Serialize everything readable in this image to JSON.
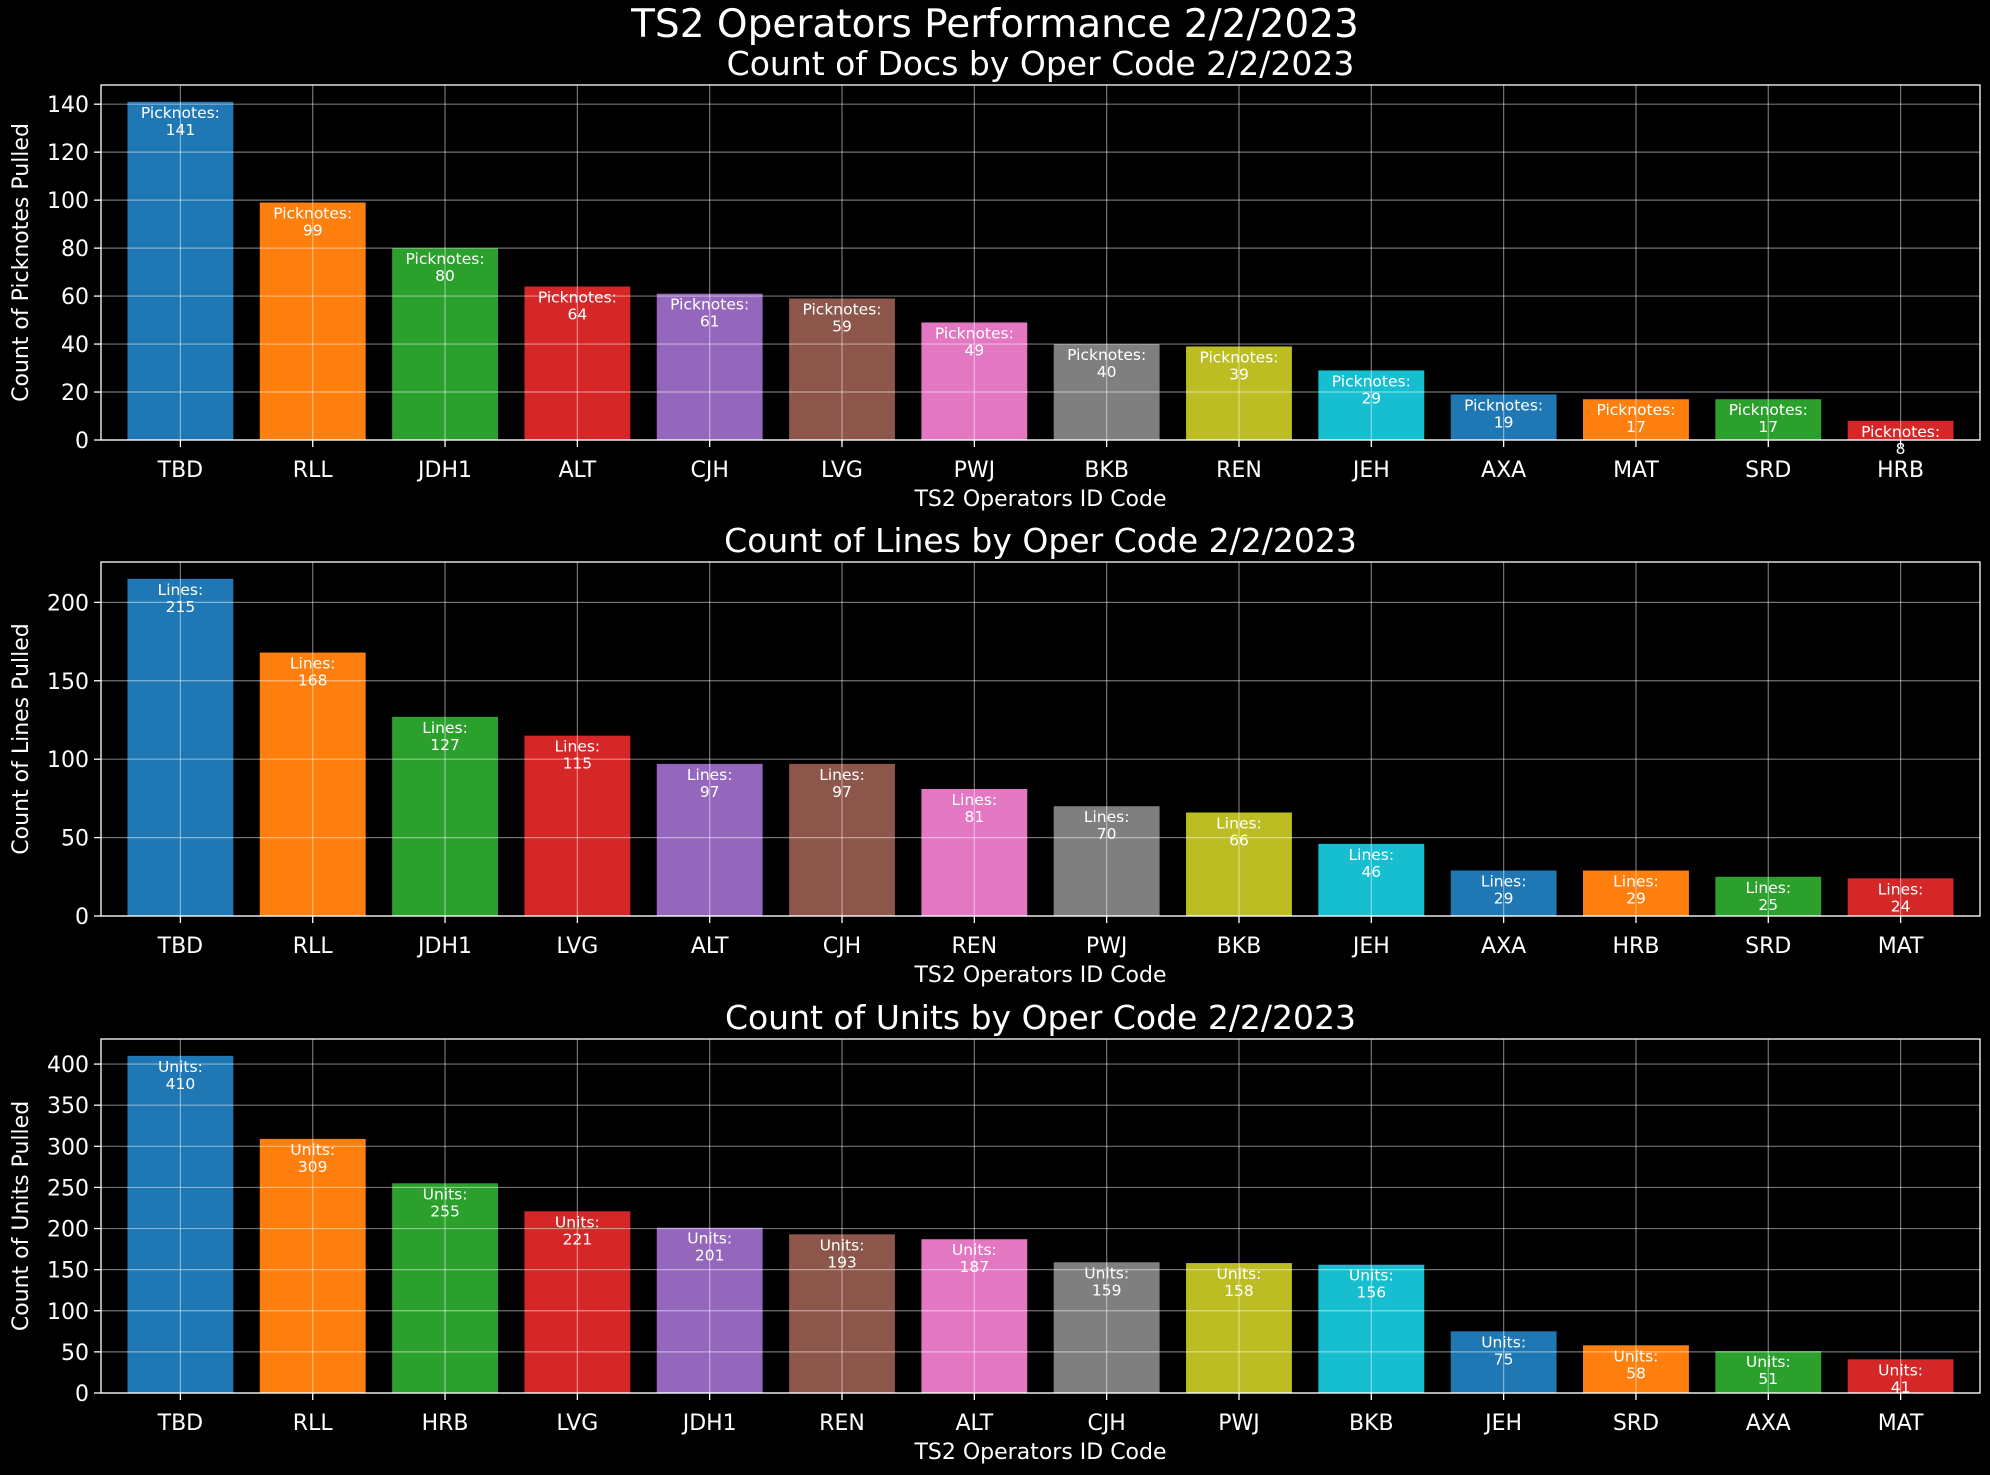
{
  "suptitle": "TS2 Operators Performance 2/2/2023",
  "palette": [
    "#1f77b4",
    "#ff7f0e",
    "#2ca02c",
    "#d62728",
    "#9467bd",
    "#8c564b",
    "#e377c2",
    "#7f7f7f",
    "#bcbd22",
    "#17becf"
  ],
  "chart_data": [
    {
      "type": "bar",
      "title": "Count of Docs by Oper Code 2/2/2023",
      "xlabel": "TS2 Operators ID Code",
      "ylabel": "Count of Picknotes Pulled",
      "label_prefix": "Picknotes:",
      "ylim": [
        0,
        148
      ],
      "yticks": [
        0,
        20,
        40,
        60,
        80,
        100,
        120,
        140
      ],
      "grid": true,
      "categories": [
        "TBD",
        "RLL",
        "JDH1",
        "ALT",
        "CJH",
        "LVG",
        "PWJ",
        "BKB",
        "REN",
        "JEH",
        "AXA",
        "MAT",
        "SRD",
        "HRB"
      ],
      "values": [
        141,
        99,
        80,
        64,
        61,
        59,
        49,
        40,
        39,
        29,
        19,
        17,
        17,
        8
      ]
    },
    {
      "type": "bar",
      "title": "Count of Lines by Oper Code 2/2/2023",
      "xlabel": "TS2 Operators ID Code",
      "ylabel": "Count of Lines Pulled",
      "label_prefix": "Lines:",
      "ylim": [
        0,
        225.75
      ],
      "yticks": [
        0,
        50,
        100,
        150,
        200
      ],
      "grid": true,
      "categories": [
        "TBD",
        "RLL",
        "JDH1",
        "LVG",
        "ALT",
        "CJH",
        "REN",
        "PWJ",
        "BKB",
        "JEH",
        "AXA",
        "HRB",
        "SRD",
        "MAT"
      ],
      "values": [
        215,
        168,
        127,
        115,
        97,
        97,
        81,
        70,
        66,
        46,
        29,
        29,
        25,
        24
      ]
    },
    {
      "type": "bar",
      "title": "Count of Units by Oper Code 2/2/2023",
      "xlabel": "TS2 Operators ID Code",
      "ylabel": "Count of Units Pulled",
      "label_prefix": "Units:",
      "ylim": [
        0,
        430.5
      ],
      "yticks": [
        0,
        50,
        100,
        150,
        200,
        250,
        300,
        350,
        400
      ],
      "grid": true,
      "categories": [
        "TBD",
        "RLL",
        "HRB",
        "LVG",
        "JDH1",
        "REN",
        "ALT",
        "CJH",
        "PWJ",
        "BKB",
        "JEH",
        "SRD",
        "AXA",
        "MAT"
      ],
      "values": [
        410,
        309,
        255,
        221,
        201,
        193,
        187,
        159,
        158,
        156,
        75,
        58,
        51,
        41
      ]
    }
  ]
}
